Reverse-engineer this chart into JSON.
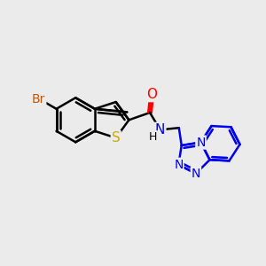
{
  "background_color": "#ebebeb",
  "bond_color": "#000000",
  "bond_width": 1.8,
  "atom_colors": {
    "Br": "#cc5500",
    "S": "#ccaa00",
    "O": "#ff0000",
    "N": "#0000ee",
    "C": "#000000",
    "H": "#000000"
  },
  "font_size": 10,
  "figsize": [
    3.0,
    3.0
  ],
  "dpi": 100
}
